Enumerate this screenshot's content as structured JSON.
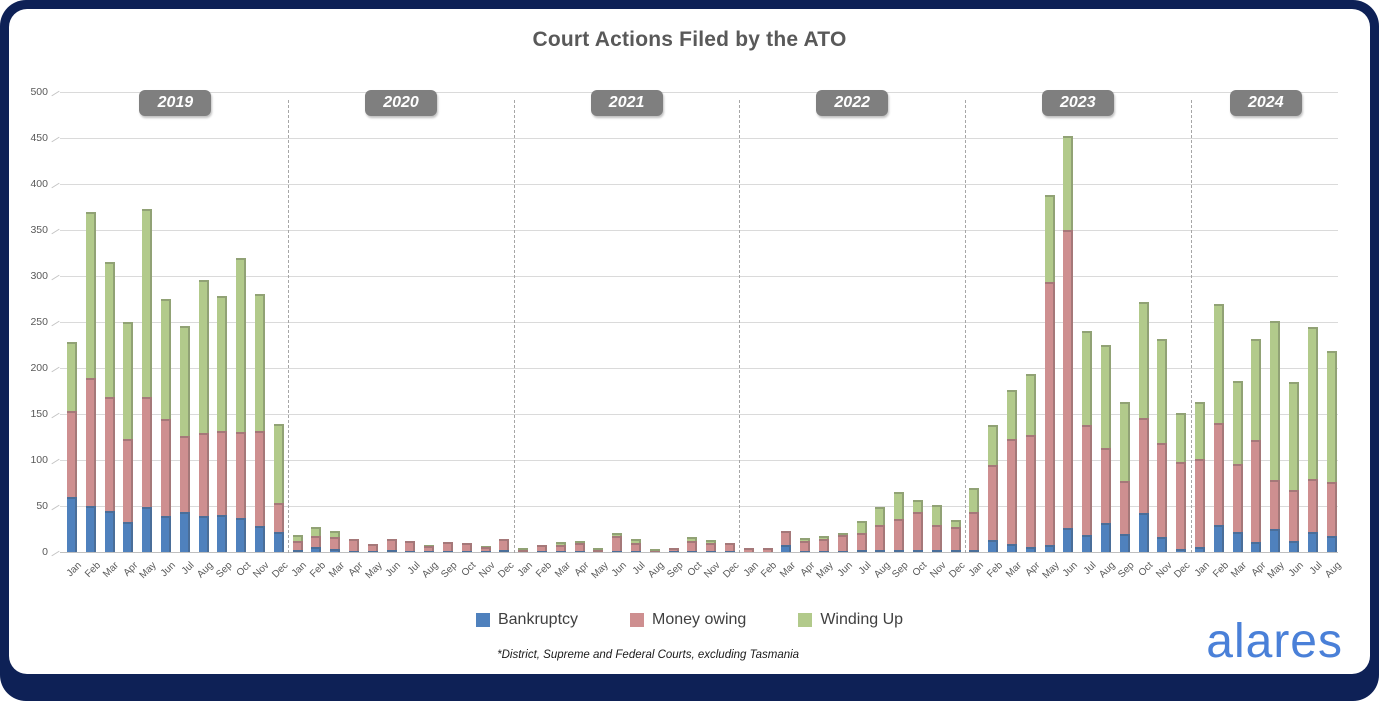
{
  "brand": {
    "logo_text": "alares",
    "logo_color": "#4a80d8",
    "frame_color": "#0e2156"
  },
  "notes": {
    "footnote": "*District, Supreme and Federal Courts, excluding Tasmania"
  },
  "axis": {
    "ylabels": [
      "0",
      "50",
      "100",
      "150",
      "200",
      "250",
      "300",
      "350",
      "400",
      "450",
      "500"
    ]
  },
  "chart_data": {
    "type": "bar",
    "stacked": true,
    "title": "Court Actions Filed by the ATO",
    "xlabel": "",
    "ylabel": "",
    "ylim": [
      0,
      500
    ],
    "ytick_step": 50,
    "grid": true,
    "legend_position": "bottom",
    "year_groups": [
      {
        "label": "2019",
        "months": 12
      },
      {
        "label": "2020",
        "months": 12
      },
      {
        "label": "2021",
        "months": 12
      },
      {
        "label": "2022",
        "months": 12
      },
      {
        "label": "2023",
        "months": 12
      },
      {
        "label": "2024",
        "months": 8
      }
    ],
    "categories": [
      "Jan",
      "Feb",
      "Mar",
      "Apr",
      "May",
      "Jun",
      "Jul",
      "Aug",
      "Sep",
      "Oct",
      "Nov",
      "Dec",
      "Jan",
      "Feb",
      "Mar",
      "Apr",
      "May",
      "Jun",
      "Jul",
      "Aug",
      "Sep",
      "Oct",
      "Nov",
      "Dec",
      "Jan",
      "Feb",
      "Mar",
      "Apr",
      "May",
      "Jun",
      "Jul",
      "Aug",
      "Sep",
      "Oct",
      "Nov",
      "Dec",
      "Jan",
      "Feb",
      "Mar",
      "Apr",
      "May",
      "Jun",
      "Jul",
      "Aug",
      "Sep",
      "Oct",
      "Nov",
      "Dec",
      "Jan",
      "Feb",
      "Mar",
      "Apr",
      "May",
      "Jun",
      "Jul",
      "Aug",
      "Sep",
      "Oct",
      "Nov",
      "Dec",
      "Jan",
      "Feb",
      "Mar",
      "Apr",
      "May",
      "Jun",
      "Jul",
      "Aug"
    ],
    "series": [
      {
        "name": "Bankruptcy",
        "color": "#4f81bd",
        "values": [
          60,
          50,
          45,
          33,
          49,
          39,
          44,
          39,
          40,
          37,
          28,
          22,
          2,
          5,
          3,
          1,
          1,
          2,
          1,
          1,
          1,
          1,
          1,
          2,
          0,
          1,
          1,
          1,
          0,
          1,
          1,
          0,
          1,
          1,
          1,
          1,
          0,
          0,
          8,
          1,
          1,
          1,
          2,
          2,
          2,
          2,
          2,
          2,
          2,
          13,
          9,
          5,
          8,
          26,
          19,
          32,
          20,
          42,
          16,
          3,
          5,
          29,
          22,
          11,
          25,
          12,
          22,
          17
        ]
      },
      {
        "name": "Money owing",
        "color": "#ce8f90",
        "values": [
          93,
          139,
          123,
          90,
          119,
          106,
          82,
          90,
          91,
          93,
          104,
          31,
          10,
          12,
          13,
          13,
          8,
          12,
          11,
          5,
          10,
          9,
          4,
          12,
          2,
          7,
          7,
          9,
          2,
          16,
          9,
          1,
          3,
          11,
          9,
          9,
          4,
          4,
          15,
          11,
          13,
          17,
          19,
          27,
          34,
          42,
          27,
          25,
          41,
          82,
          114,
          122,
          285,
          324,
          119,
          81,
          57,
          104,
          102,
          95,
          96,
          111,
          74,
          111,
          53,
          55,
          57,
          59
        ]
      },
      {
        "name": "Winding Up",
        "color": "#b2ca8b",
        "values": [
          75,
          181,
          147,
          127,
          205,
          130,
          120,
          167,
          147,
          190,
          148,
          86,
          6,
          10,
          7,
          0,
          0,
          0,
          0,
          2,
          0,
          0,
          2,
          0,
          2,
          0,
          3,
          2,
          2,
          4,
          4,
          2,
          0,
          4,
          3,
          0,
          0,
          0,
          0,
          3,
          3,
          3,
          13,
          20,
          29,
          12,
          22,
          8,
          27,
          43,
          53,
          66,
          95,
          102,
          102,
          112,
          86,
          126,
          113,
          53,
          62,
          130,
          90,
          110,
          173,
          118,
          166,
          142
        ]
      }
    ]
  }
}
